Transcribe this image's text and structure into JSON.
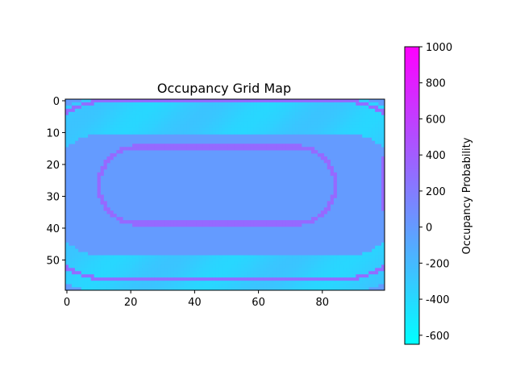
{
  "chart_data": {
    "type": "heatmap",
    "title": "Occupancy Grid Map",
    "xlabel": "",
    "ylabel": "",
    "grid": false,
    "colormap": "cool",
    "colormap_endpoints": [
      "#00ffff",
      "#ff00ff"
    ],
    "grid_shape": {
      "rows": 60,
      "cols": 100
    },
    "x_ticks": [
      0,
      20,
      40,
      60,
      80
    ],
    "y_ticks": [
      0,
      10,
      20,
      30,
      40,
      50
    ],
    "xlim": [
      -0.5,
      99.5
    ],
    "ylim": [
      59.5,
      -0.5
    ],
    "value_range": [
      -650,
      1000
    ],
    "background_value": 0,
    "features": [
      {
        "name": "free-space track (outer band)",
        "shape": "stadium",
        "center": [
          49.5,
          29.5
        ],
        "half_length": 37,
        "radius": 25,
        "band_width": 11,
        "value": -330
      },
      {
        "name": "inner boundary wall",
        "shape": "stadium",
        "center": [
          47,
          26.5
        ],
        "half_length": 25,
        "radius": 12,
        "value": 320
      },
      {
        "name": "outer boundary wall",
        "shape": "stadium",
        "center": [
          49.5,
          28
        ],
        "half_length": 36,
        "radius": 28,
        "value": 300
      },
      {
        "name": "right-edge wall segment",
        "x": 99,
        "y_range": [
          18,
          34
        ],
        "value": 320
      }
    ],
    "colorbar": {
      "label": "Occupancy Probability",
      "range": [
        -650,
        1000
      ],
      "ticks": [
        -600,
        -400,
        -200,
        0,
        200,
        400,
        600,
        800,
        1000
      ]
    }
  }
}
